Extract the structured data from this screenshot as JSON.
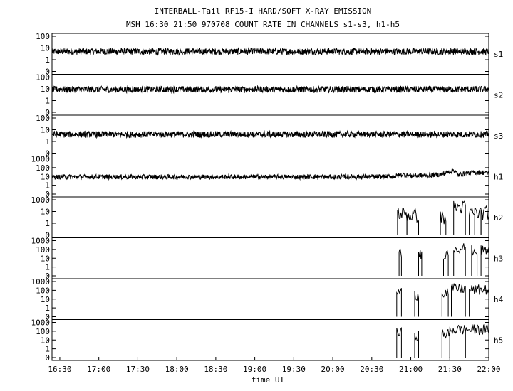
{
  "chart_data": {
    "type": "line",
    "title": "INTERBALL-Tail RF15-I HARD/SOFT X-RAY EMISSION",
    "subtitle": "MSH 16:30 21:50 970708  COUNT RATE IN CHANNELS s1-s3, h1-h5",
    "xlabel": "time UT",
    "x_ticks": [
      "16:30",
      "17:00",
      "17:30",
      "18:00",
      "18:30",
      "19:00",
      "19:30",
      "20:00",
      "20:30",
      "21:00",
      "21:30",
      "22:00"
    ],
    "x_range_hours": [
      16.4,
      22.0
    ],
    "y_scale": "log",
    "panels": [
      {
        "name": "s1",
        "ymax": 100,
        "y_ticks": [
          "100",
          "10",
          "1",
          "0"
        ],
        "series": {
          "x": [
            16.4,
            17.0,
            17.5,
            18.0,
            18.5,
            19.0,
            19.5,
            20.0,
            20.5,
            21.0,
            21.5,
            22.0
          ],
          "y": [
            5,
            5,
            5,
            5,
            5,
            5,
            5,
            5,
            5,
            5,
            5,
            5
          ]
        }
      },
      {
        "name": "s2",
        "ymax": 100,
        "y_ticks": [
          "100",
          "10",
          "1",
          "0"
        ],
        "series": {
          "x": [
            16.4,
            17.0,
            17.5,
            18.0,
            18.5,
            19.0,
            19.5,
            20.0,
            20.5,
            21.0,
            21.5,
            22.0
          ],
          "y": [
            9,
            9,
            9,
            9,
            9,
            9,
            9,
            9,
            9,
            9,
            9,
            9
          ]
        }
      },
      {
        "name": "s3",
        "ymax": 100,
        "y_ticks": [
          "100",
          "10",
          "1",
          "0"
        ],
        "series": {
          "x": [
            16.4,
            17.0,
            17.5,
            18.0,
            18.5,
            19.0,
            19.5,
            20.0,
            20.5,
            21.0,
            21.5,
            22.0
          ],
          "y": [
            4,
            4,
            4,
            4,
            4,
            4,
            4,
            4,
            4,
            4,
            4,
            4
          ]
        }
      },
      {
        "name": "h1",
        "ymax": 1000,
        "y_ticks": [
          "1000",
          "100",
          "10",
          "1",
          "0"
        ],
        "series": {
          "x": [
            16.4,
            17.0,
            17.5,
            18.0,
            18.5,
            19.0,
            19.5,
            20.0,
            20.5,
            20.8,
            20.9,
            21.0,
            21.2,
            21.4,
            21.5,
            21.55,
            21.6,
            21.7,
            21.8,
            21.9,
            22.0
          ],
          "y": [
            9,
            9,
            9,
            9,
            9,
            9,
            9,
            9,
            9,
            10,
            16,
            12,
            13,
            18,
            35,
            55,
            14,
            22,
            28,
            30,
            25
          ]
        }
      },
      {
        "name": "h2",
        "ymax": 1000,
        "y_ticks": [
          "1000",
          "10",
          "1",
          "0"
        ],
        "bursts": [
          [
            20.83,
            20.95,
            80
          ],
          [
            20.95,
            21.1,
            60
          ],
          [
            21.38,
            21.45,
            40
          ],
          [
            21.55,
            21.7,
            300
          ],
          [
            21.75,
            21.82,
            100
          ],
          [
            21.82,
            21.9,
            100
          ],
          [
            21.9,
            22.0,
            100
          ]
        ]
      },
      {
        "name": "h3",
        "ymax": 1000,
        "y_ticks": [
          "1000",
          "100",
          "10",
          "1",
          "0"
        ],
        "bursts": [
          [
            20.85,
            20.88,
            40
          ],
          [
            21.1,
            21.14,
            40
          ],
          [
            21.42,
            21.48,
            40
          ],
          [
            21.55,
            21.7,
            200
          ],
          [
            21.78,
            21.85,
            100
          ],
          [
            21.9,
            22.0,
            100
          ]
        ]
      },
      {
        "name": "h4",
        "ymax": 1000,
        "y_ticks": [
          "1000",
          "100",
          "10",
          "1",
          "0"
        ],
        "bursts": [
          [
            20.82,
            20.88,
            80
          ],
          [
            21.05,
            21.1,
            40
          ],
          [
            21.4,
            21.48,
            80
          ],
          [
            21.52,
            21.7,
            200
          ],
          [
            21.75,
            22.0,
            150
          ]
        ]
      },
      {
        "name": "h5",
        "ymax": 1000,
        "y_ticks": [
          "1000",
          "100",
          "10",
          "1",
          "0"
        ],
        "bursts": [
          [
            20.82,
            20.88,
            80
          ],
          [
            21.05,
            21.1,
            40
          ],
          [
            21.4,
            21.5,
            60
          ],
          [
            21.5,
            21.7,
            200
          ],
          [
            21.7,
            22.0,
            200
          ]
        ]
      }
    ]
  }
}
